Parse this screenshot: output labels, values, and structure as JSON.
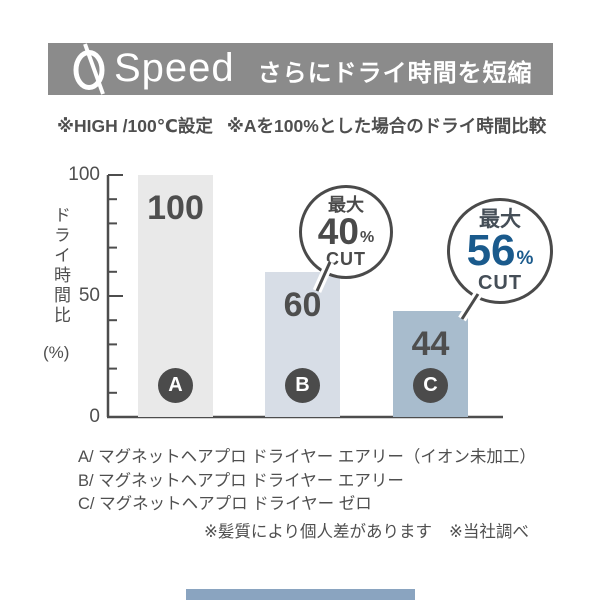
{
  "header": {
    "logo_text": "Speed",
    "tagline": "さらにドライ時間を短縮"
  },
  "subtitle": {
    "part1": "※HIGH /100℃設定",
    "part2": "※Aを100%とした場合のドライ時間比較"
  },
  "chart_data": {
    "type": "bar",
    "categories": [
      "A",
      "B",
      "C"
    ],
    "values": [
      100,
      60,
      44
    ],
    "bar_colors": [
      "#e9e9e9",
      "#d7dde6",
      "#a8bccd"
    ],
    "title": "",
    "xlabel": "",
    "ylabel": "ドライ時間比",
    "ylabel_unit": "(%)",
    "ylim": [
      0,
      100
    ],
    "ytick_labels": [
      "0",
      "50",
      "100"
    ],
    "minor_tick_step": 10,
    "grid": false,
    "legend_position": "below",
    "annotations": [
      {
        "bar": "B",
        "text": "最大40%CUT"
      },
      {
        "bar": "C",
        "text": "最大56%CUT",
        "highlighted": true
      }
    ]
  },
  "badge_b": {
    "prefix": "最大",
    "value": "40",
    "unit": "%",
    "suffix": "CUT"
  },
  "badge_c": {
    "prefix": "最大",
    "value": "56",
    "unit": "%",
    "suffix": "CUT"
  },
  "legend": {
    "item_a": "A/ マグネットヘアプロ ドライヤー エアリー（イオン未加工）",
    "item_b": "B/ マグネットヘアプロ ドライヤー エアリー",
    "item_c": "C/ マグネットヘアプロ ドライヤー ゼロ"
  },
  "footnote": {
    "note1": "※髪質により個人差があります",
    "note2": "※当社調べ"
  },
  "colors": {
    "header_bg": "#8b8b8b",
    "accent_blue": "#1a5a8c",
    "text_dark": "#4f4f4f",
    "badge_border": "#4a4a4a",
    "category_circle": "#4b4b4b",
    "axis": "#4d4d4d",
    "bottom_bar": "#8aa4c0"
  }
}
